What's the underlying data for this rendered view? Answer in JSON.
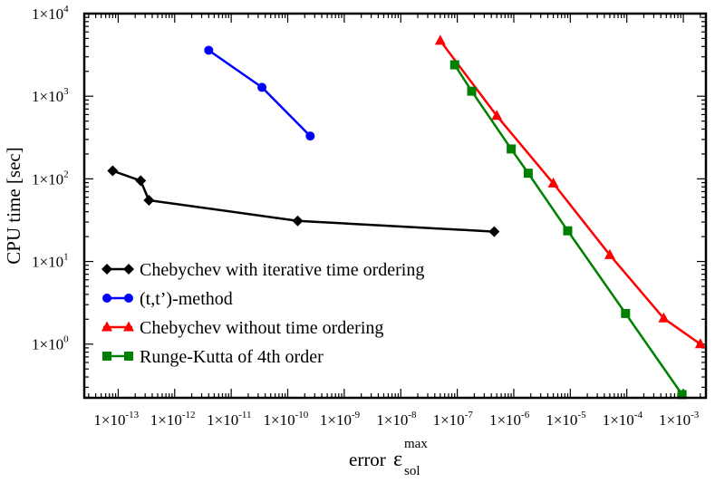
{
  "chart_data": {
    "type": "line",
    "xscale": "log",
    "yscale": "log",
    "xlim_log10": [
      -13.6,
      -2.6
    ],
    "ylim_log10": [
      -0.65,
      4.0
    ],
    "xlabel": {
      "prefix": "error",
      "symbol": "ε",
      "superscript": "max",
      "subscript": "sol"
    },
    "ylabel": "CPU time  [sec]",
    "x_tick_labels": [
      {
        "mant": "1×10",
        "exp": "-13",
        "log": -13
      },
      {
        "mant": "1×10",
        "exp": "-12",
        "log": -12
      },
      {
        "mant": "1×10",
        "exp": "-11",
        "log": -11
      },
      {
        "mant": "1×10",
        "exp": "-10",
        "log": -10
      },
      {
        "mant": "1×10",
        "exp": "-9",
        "log": -9
      },
      {
        "mant": "1×10",
        "exp": "-8",
        "log": -8
      },
      {
        "mant": "1×10",
        "exp": "-7",
        "log": -7
      },
      {
        "mant": "1×10",
        "exp": "-6",
        "log": -6
      },
      {
        "mant": "1×10",
        "exp": "-5",
        "log": -5
      },
      {
        "mant": "1×10",
        "exp": "-4",
        "log": -4
      },
      {
        "mant": "1×10",
        "exp": "-3",
        "log": -3
      }
    ],
    "y_tick_labels": [
      {
        "mant": "1×10",
        "exp": "0",
        "log": 0
      },
      {
        "mant": "1×10",
        "exp": "1",
        "log": 1
      },
      {
        "mant": "1×10",
        "exp": "2",
        "log": 2
      },
      {
        "mant": "1×10",
        "exp": "3",
        "log": 3
      },
      {
        "mant": "1×10",
        "exp": "4",
        "log": 4
      }
    ],
    "legend_position": "lower-left",
    "series": [
      {
        "name": "Chebychev with iterative time ordering",
        "color": "#000000",
        "marker": "diamond",
        "points": [
          {
            "x": 8e-14,
            "y": 125
          },
          {
            "x": 2.5e-13,
            "y": 95
          },
          {
            "x": 3.5e-13,
            "y": 55
          },
          {
            "x": 1.5e-10,
            "y": 31
          },
          {
            "x": 4.5e-07,
            "y": 23
          }
        ]
      },
      {
        "name": "(t,t’)-method",
        "color": "#0000ff",
        "marker": "circle",
        "points": [
          {
            "x": 4e-12,
            "y": 3600
          },
          {
            "x": 3.5e-11,
            "y": 1280
          },
          {
            "x": 2.5e-10,
            "y": 330
          }
        ]
      },
      {
        "name": "Chebychev without time ordering",
        "color": "#ff0000",
        "marker": "triangle",
        "points": [
          {
            "x": 5e-08,
            "y": 4700
          },
          {
            "x": 5e-07,
            "y": 580
          },
          {
            "x": 5e-06,
            "y": 88
          },
          {
            "x": 5e-05,
            "y": 12
          },
          {
            "x": 0.00045,
            "y": 2.05
          },
          {
            "x": 0.002,
            "y": 1.0
          }
        ]
      },
      {
        "name": "Runge-Kutta of 4th order",
        "color": "#008000",
        "marker": "square",
        "points": [
          {
            "x": 9e-08,
            "y": 2400
          },
          {
            "x": 1.8e-07,
            "y": 1150
          },
          {
            "x": 9e-07,
            "y": 230
          },
          {
            "x": 1.8e-06,
            "y": 117
          },
          {
            "x": 9e-06,
            "y": 23.5
          },
          {
            "x": 9.5e-05,
            "y": 2.35
          },
          {
            "x": 0.00095,
            "y": 0.245
          }
        ]
      }
    ]
  }
}
